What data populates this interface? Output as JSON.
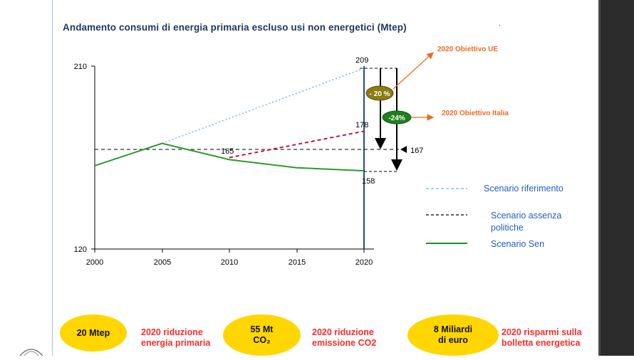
{
  "title": "Andamento consumi di energia primaria escluso usi non energetici (Mtep)",
  "title_dot": ".",
  "colors": {
    "title": "#1f3864",
    "reference": "#8db3e2",
    "policy_absence": "#c0143c",
    "sen": "#2e9a2e",
    "target_text": "#ec6b1f",
    "oval": "#ffd600",
    "note_text": "#ff2a2a",
    "legend_text": "#1f5fbf",
    "pill_eu": "#8a7d12",
    "pill_it": "#1f7f1f"
  },
  "chart_data": {
    "type": "line",
    "title": "Andamento consumi di energia primaria escluso usi non energetici (Mtep)",
    "x_ticks": [
      "2000",
      "2005",
      "2010",
      "2015",
      "2020"
    ],
    "y_ticks": [
      "210",
      "120"
    ],
    "xlim": [
      2000,
      2020
    ],
    "ylim": [
      120,
      210
    ],
    "series": [
      {
        "name": "Scenario riferimento",
        "style": "dotted",
        "color": "#8db3e2",
        "x": [
          2005,
          2020
        ],
        "y": [
          172,
          209
        ]
      },
      {
        "name": "Scenario assenza politiche",
        "style": "dashed",
        "color": "#c0143c",
        "x": [
          2010,
          2020
        ],
        "y": [
          165,
          178
        ]
      },
      {
        "name": "Scenario Sen",
        "style": "solid",
        "color": "#2e9a2e",
        "x": [
          2000,
          2005,
          2010,
          2015,
          2020
        ],
        "y": [
          161,
          172,
          164,
          160,
          158.5
        ]
      }
    ],
    "reference_level": 167,
    "value_labels": [
      {
        "text": "209",
        "x": 2020,
        "y": 209
      },
      {
        "text": "178",
        "x": 2020,
        "y": 178
      },
      {
        "text": "165",
        "x": 2010,
        "y": 165
      },
      {
        "text": "158",
        "x": 2020,
        "y": 158
      },
      {
        "text": "167",
        "x": 2020,
        "y": 167
      }
    ],
    "annotations": [
      {
        "pill": "- 20 %",
        "target": "2020 Obiettivo UE"
      },
      {
        "pill": "-24%",
        "target": "2020 Obiettivo Italia"
      }
    ]
  },
  "legend": [
    {
      "label_lines": [
        "Scenario riferimento"
      ],
      "line_style": "dashed",
      "color": "#5bc0de"
    },
    {
      "label_lines": [
        "Scenario assenza",
        "politiche"
      ],
      "line_style": "dashed",
      "color": "#000000"
    },
    {
      "label_lines": [
        "Scenario Sen"
      ],
      "line_style": "solid",
      "color": "#1f8f1f"
    }
  ],
  "bottom_items": [
    {
      "oval_lines": [
        "20 Mtep"
      ],
      "note_lines": [
        "2020 riduzione",
        "energia primaria"
      ]
    },
    {
      "oval_lines": [
        "55 Mt",
        "CO₂"
      ],
      "note_lines": [
        "2020 riduzione",
        "emissione CO2"
      ]
    },
    {
      "oval_lines": [
        "8  Miliardi",
        "di  euro"
      ],
      "note_lines": [
        "2020 risparmi sulla",
        "bolletta energetica"
      ]
    }
  ]
}
